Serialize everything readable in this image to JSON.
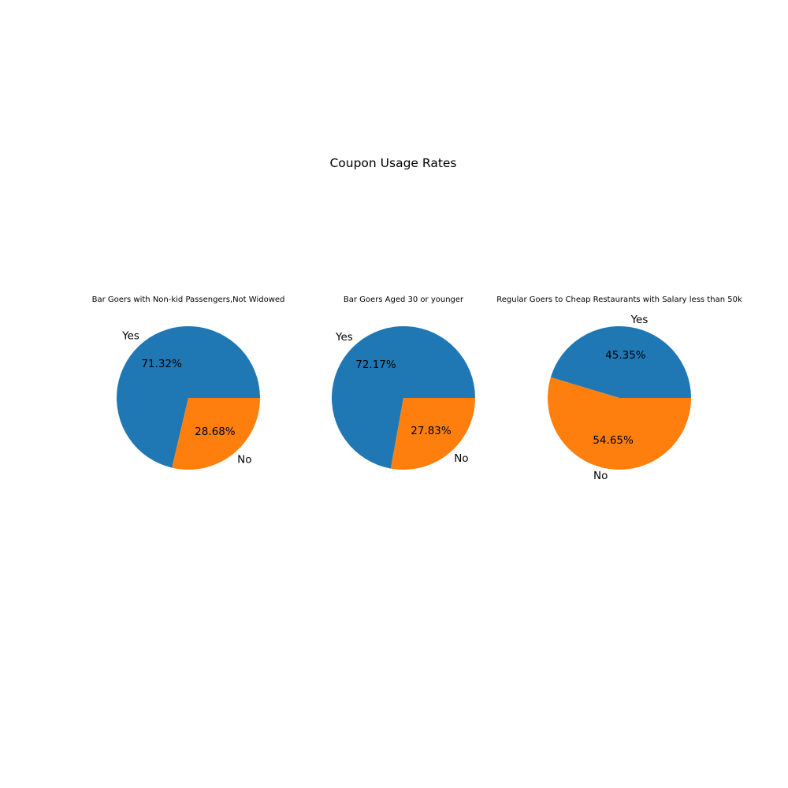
{
  "figure": {
    "title": "Coupon Usage Rates"
  },
  "colors": {
    "yes": "#1f77b4",
    "no": "#ff7f0e"
  },
  "chart_data": [
    {
      "type": "pie",
      "title": "Bar Goers with Non-kid Passengers,Not Widowed",
      "slices": [
        {
          "label": "Yes",
          "value": 71.32,
          "pct_label": "71.32%",
          "color": "#1f77b4"
        },
        {
          "label": "No",
          "value": 28.68,
          "pct_label": "28.68%",
          "color": "#ff7f0e"
        }
      ]
    },
    {
      "type": "pie",
      "title": "Bar Goers Aged 30 or younger",
      "slices": [
        {
          "label": "Yes",
          "value": 72.17,
          "pct_label": "72.17%",
          "color": "#1f77b4"
        },
        {
          "label": "No",
          "value": 27.83,
          "pct_label": "27.83%",
          "color": "#ff7f0e"
        }
      ]
    },
    {
      "type": "pie",
      "title": "Regular Goers to Cheap Restaurants with Salary less than 50k",
      "slices": [
        {
          "label": "Yes",
          "value": 45.35,
          "pct_label": "45.35%",
          "color": "#1f77b4"
        },
        {
          "label": "No",
          "value": 54.65,
          "pct_label": "54.65%",
          "color": "#ff7f0e"
        }
      ]
    }
  ]
}
